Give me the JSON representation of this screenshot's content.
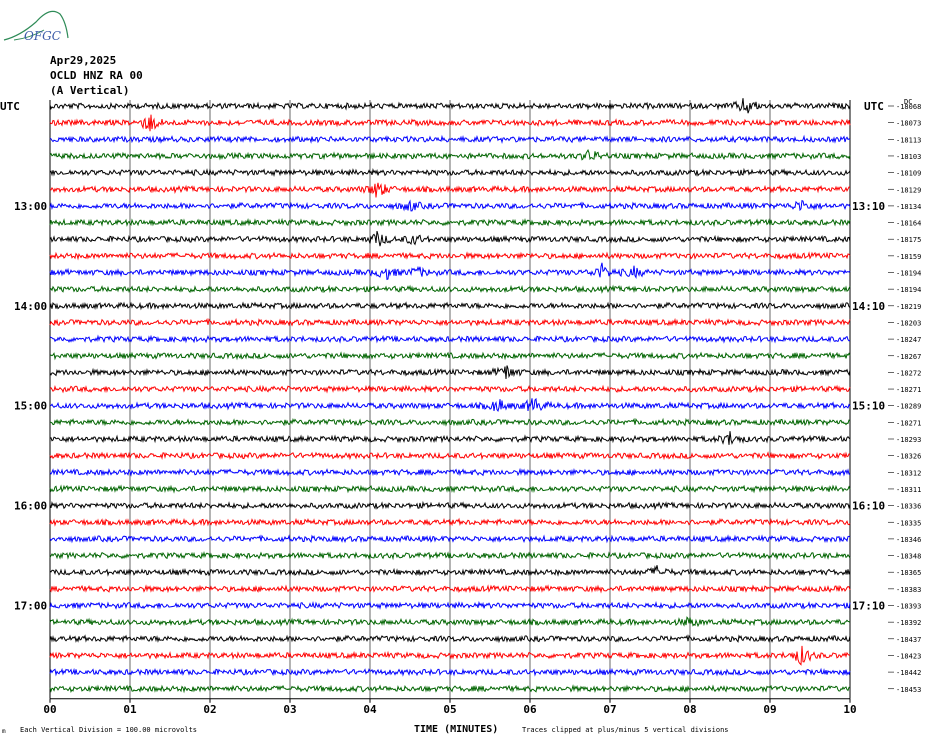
{
  "logo": {
    "text": "OFGC"
  },
  "header": {
    "date": "Apr29,2025",
    "station": "OCLD HNZ RA 00",
    "orientation": "(A Vertical)"
  },
  "colors": {
    "trace_cycle": [
      "#000000",
      "#ff0000",
      "#0000ff",
      "#006400"
    ],
    "grid": "#000000"
  },
  "chart_data": {
    "type": "line",
    "title": "",
    "xlabel": "TIME (MINUTES)",
    "ylabel": "",
    "xlim": [
      0,
      10
    ],
    "x_ticks": [
      "00",
      "01",
      "02",
      "03",
      "04",
      "05",
      "06",
      "07",
      "08",
      "09",
      "10"
    ],
    "left_axis_label": "UTC",
    "right_axis_label": "UTC",
    "left_hour_labels": [
      {
        "row": 6,
        "label": "13:00"
      },
      {
        "row": 12,
        "label": "14:00"
      },
      {
        "row": 18,
        "label": "15:00"
      },
      {
        "row": 24,
        "label": "16:00"
      },
      {
        "row": 30,
        "label": "17:00"
      }
    ],
    "right_hour_labels": [
      {
        "row": 6,
        "label": "13:10"
      },
      {
        "row": 12,
        "label": "14:10"
      },
      {
        "row": 18,
        "label": "15:10"
      },
      {
        "row": 24,
        "label": "16:10"
      },
      {
        "row": 30,
        "label": "17:10"
      }
    ],
    "trace_means": [
      "-18068",
      "-18073",
      "-18113",
      "-18103",
      "-18109",
      "-18129",
      "-18134",
      "-18164",
      "-18175",
      "-18159",
      "-18194",
      "-18194",
      "-18219",
      "-18203",
      "-18247",
      "-18267",
      "-18272",
      "-18271",
      "-18289",
      "-18271",
      "-18293",
      "-18326",
      "-18312",
      "-18311",
      "-18336",
      "-18335",
      "-18346",
      "-18348",
      "-18365",
      "-18383",
      "-18393",
      "-18392",
      "-18437",
      "-18423",
      "-18442",
      "-18453"
    ],
    "top_right_tag": "DC",
    "events": [
      {
        "row": 0,
        "minute": 8.7,
        "amplitude": 1.0
      },
      {
        "row": 1,
        "minute": 1.25,
        "amplitude": 1.0
      },
      {
        "row": 3,
        "minute": 6.75,
        "amplitude": 0.6
      },
      {
        "row": 5,
        "minute": 4.1,
        "amplitude": 1.0
      },
      {
        "row": 6,
        "minute": 4.5,
        "amplitude": 0.5
      },
      {
        "row": 6,
        "minute": 9.4,
        "amplitude": 0.6
      },
      {
        "row": 8,
        "minute": 4.1,
        "amplitude": 0.8
      },
      {
        "row": 8,
        "minute": 4.55,
        "amplitude": 0.5
      },
      {
        "row": 10,
        "minute": 4.2,
        "amplitude": 0.7
      },
      {
        "row": 10,
        "minute": 4.6,
        "amplitude": 0.5
      },
      {
        "row": 10,
        "minute": 6.9,
        "amplitude": 0.8
      },
      {
        "row": 10,
        "minute": 7.3,
        "amplitude": 0.5
      },
      {
        "row": 16,
        "minute": 5.7,
        "amplitude": 0.8
      },
      {
        "row": 18,
        "minute": 5.6,
        "amplitude": 0.7
      },
      {
        "row": 18,
        "minute": 6.05,
        "amplitude": 0.9
      },
      {
        "row": 20,
        "minute": 8.5,
        "amplitude": 0.7
      },
      {
        "row": 28,
        "minute": 7.6,
        "amplitude": 0.6
      },
      {
        "row": 31,
        "minute": 8.0,
        "amplitude": 0.5
      },
      {
        "row": 33,
        "minute": 9.4,
        "amplitude": 1.0
      }
    ],
    "footer_left": "Each Vertical Division =  100.00 microvolts",
    "footer_right": "Traces clipped at plus/minus 5 vertical divisions"
  }
}
